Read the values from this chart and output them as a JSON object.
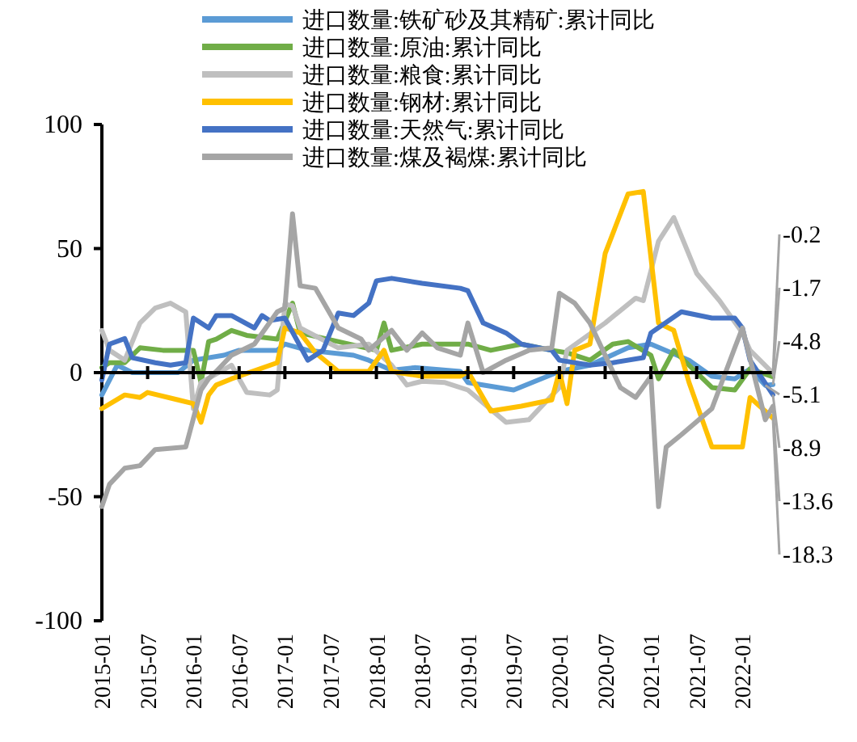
{
  "chart_data": {
    "type": "line",
    "legend": "top",
    "marker": "none",
    "line_style": "solid",
    "xlim": [
      "2015-01",
      "2022-05"
    ],
    "xticks": [
      "2015-01",
      "2015-07",
      "2016-01",
      "2016-07",
      "2017-01",
      "2017-07",
      "2018-01",
      "2018-07",
      "2019-01",
      "2019-07",
      "2020-01",
      "2020-07",
      "2021-01",
      "2021-07",
      "2022-01"
    ],
    "ylim": [
      -100,
      100
    ],
    "yticks": [
      -100,
      -50,
      0,
      50,
      100
    ],
    "series": [
      {
        "name": "进口数量:铁矿砂及其精矿:累计同比",
        "color": "#5b9bd5",
        "x": [
          "2015-01",
          "2015-03",
          "2015-05",
          "2015-11",
          "2016-01",
          "2016-05",
          "2016-07",
          "2016-12",
          "2017-01",
          "2017-04",
          "2017-10",
          "2017-12",
          "2018-03",
          "2018-06",
          "2018-12",
          "2019-01",
          "2019-07",
          "2020-01",
          "2020-05",
          "2020-10",
          "2021-01",
          "2021-06",
          "2021-09",
          "2021-12",
          "2022-02",
          "2022-04",
          "2022-05"
        ],
        "values": [
          -9,
          3,
          0,
          0,
          5,
          7,
          9,
          9,
          11.5,
          9,
          7,
          5,
          1,
          2,
          0.5,
          -4,
          -7,
          0.5,
          3,
          10,
          11.5,
          5,
          -1.5,
          -2.5,
          1.5,
          -5.1,
          -4.8
        ]
      },
      {
        "name": "进口数量:原油:累计同比",
        "color": "#70ad47",
        "x": [
          "2015-01",
          "2015-02",
          "2015-04",
          "2015-06",
          "2015-09",
          "2016-01",
          "2016-02",
          "2016-03",
          "2016-04",
          "2016-06",
          "2016-08",
          "2016-12",
          "2017-02",
          "2017-03",
          "2017-08",
          "2018-01",
          "2018-02",
          "2018-03",
          "2018-07",
          "2019-01",
          "2019-04",
          "2019-08",
          "2019-12",
          "2020-02",
          "2020-05",
          "2020-08",
          "2020-10",
          "2021-01",
          "2021-02",
          "2021-04",
          "2021-06",
          "2021-09",
          "2021-12",
          "2022-02",
          "2022-05"
        ],
        "values": [
          2,
          4,
          4,
          10,
          9,
          9,
          -4,
          12.5,
          13.5,
          17,
          15,
          13.5,
          28,
          16,
          12.5,
          9,
          20,
          9,
          11.5,
          11.5,
          9,
          11.5,
          9,
          8,
          5,
          11.5,
          12.5,
          7,
          -2.5,
          9,
          3,
          -6,
          -7,
          1.5,
          -1.7
        ]
      },
      {
        "name": "进口数量:粮食:累计同比",
        "color": "#bfbfbf",
        "x": [
          "2015-01",
          "2015-02",
          "2015-04",
          "2015-06",
          "2015-08",
          "2015-10",
          "2015-12",
          "2016-01",
          "2016-02",
          "2016-06",
          "2016-08",
          "2016-11",
          "2016-12",
          "2017-01",
          "2017-02",
          "2017-03",
          "2017-08",
          "2017-12",
          "2018-03",
          "2018-05",
          "2018-07",
          "2018-10",
          "2019-01",
          "2019-06",
          "2019-09",
          "2020-01",
          "2020-02",
          "2020-07",
          "2020-11",
          "2020-12",
          "2021-02",
          "2021-04",
          "2021-07",
          "2021-10",
          "2022-01",
          "2022-02",
          "2022-05"
        ],
        "values": [
          17,
          9,
          5,
          20,
          26,
          28,
          24.5,
          -14.5,
          -4,
          3,
          -8,
          -9,
          -7,
          27.5,
          27,
          18,
          10,
          11.5,
          3,
          -5,
          -3.5,
          -4,
          -7,
          -20,
          -19,
          -6,
          9,
          20,
          30,
          29,
          53,
          62.5,
          40,
          29,
          16,
          9,
          -0.2
        ]
      },
      {
        "name": "进口数量:钢材:累计同比",
        "color": "#ffc000",
        "x": [
          "2015-01",
          "2015-04",
          "2015-06",
          "2015-07",
          "2015-11",
          "2016-01",
          "2016-02",
          "2016-03",
          "2016-04",
          "2016-06",
          "2016-12",
          "2017-01",
          "2017-03",
          "2017-05",
          "2017-08",
          "2017-12",
          "2018-02",
          "2018-03",
          "2018-07",
          "2018-12",
          "2019-01",
          "2019-04",
          "2019-08",
          "2019-12",
          "2020-01",
          "2020-02",
          "2020-03",
          "2020-05",
          "2020-07",
          "2020-10",
          "2020-12",
          "2021-02",
          "2021-04",
          "2021-06",
          "2021-09",
          "2022-01",
          "2022-02",
          "2022-05"
        ],
        "values": [
          -14.5,
          -9,
          -10,
          -8,
          -11,
          -12.5,
          -20,
          -9,
          -5,
          -2.5,
          4,
          18,
          16,
          8,
          0.5,
          0.5,
          9,
          0.5,
          -1.5,
          -1.5,
          0.5,
          -15.5,
          -13.5,
          -11,
          0.5,
          -12.5,
          9,
          11.5,
          48,
          72,
          73,
          20,
          17,
          -4,
          -30,
          -30,
          -10,
          -18.3
        ]
      },
      {
        "name": "进口数量:天然气:累计同比",
        "color": "#4472c4",
        "x": [
          "2015-01",
          "2015-02",
          "2015-04",
          "2015-05",
          "2015-08",
          "2015-10",
          "2015-12",
          "2016-01",
          "2016-03",
          "2016-04",
          "2016-06",
          "2016-09",
          "2016-10",
          "2016-11",
          "2017-01",
          "2017-04",
          "2017-06",
          "2017-08",
          "2017-10",
          "2017-12",
          "2018-01",
          "2018-03",
          "2018-07",
          "2018-12",
          "2019-01",
          "2019-03",
          "2019-06",
          "2019-08",
          "2019-12",
          "2020-01",
          "2020-05",
          "2020-08",
          "2020-12",
          "2021-01",
          "2021-05",
          "2021-09",
          "2021-12",
          "2022-01",
          "2022-02",
          "2022-05"
        ],
        "values": [
          -3,
          11.5,
          13.7,
          6,
          4,
          3,
          4,
          22,
          18,
          23,
          23,
          18,
          23,
          21,
          22,
          5,
          9,
          24,
          23,
          28,
          37,
          38,
          36,
          34,
          33,
          20,
          16,
          11.5,
          9,
          5,
          3,
          4,
          6,
          16,
          24.5,
          22,
          22,
          18,
          5,
          -8.9
        ]
      },
      {
        "name": "进口数量:煤及褐煤:累计同比",
        "color": "#a5a5a5",
        "x": [
          "2015-01",
          "2015-02",
          "2015-04",
          "2015-06",
          "2015-08",
          "2015-12",
          "2016-02",
          "2016-03",
          "2016-04",
          "2016-06",
          "2016-09",
          "2016-12",
          "2017-01",
          "2017-02",
          "2017-03",
          "2017-05",
          "2017-08",
          "2017-11",
          "2017-12",
          "2018-03",
          "2018-05",
          "2018-07",
          "2018-09",
          "2018-12",
          "2019-01",
          "2019-03",
          "2019-06",
          "2019-09",
          "2019-12",
          "2020-01",
          "2020-03",
          "2020-05",
          "2020-09",
          "2020-11",
          "2021-01",
          "2021-02",
          "2021-03",
          "2021-05",
          "2021-09",
          "2021-12",
          "2022-01",
          "2022-04",
          "2022-05"
        ],
        "values": [
          -54,
          -45,
          -38.5,
          -37.5,
          -31,
          -30,
          -7,
          -2.5,
          0.5,
          7,
          11.5,
          24.5,
          26,
          64,
          35,
          34,
          18,
          13.5,
          9,
          17,
          9,
          16,
          10,
          7,
          20,
          0,
          5,
          9,
          10,
          32,
          28,
          20,
          -6,
          -10,
          -1.5,
          -54,
          -30,
          -25,
          -14.5,
          10,
          18,
          -19,
          -13.6
        ]
      }
    ],
    "annotations": [
      {
        "text": "-0.2",
        "x": "2022-05",
        "y": -0.2
      },
      {
        "text": "-1.7",
        "x": "2022-05",
        "y": -1.7
      },
      {
        "text": "-4.8",
        "x": "2022-05",
        "y": -4.8
      },
      {
        "text": "-5.1",
        "x": "2022-04",
        "y": -5.1
      },
      {
        "text": "-8.9",
        "x": "2022-05",
        "y": -8.9
      },
      {
        "text": "-13.6",
        "x": "2022-05",
        "y": -13.6
      },
      {
        "text": "-18.3",
        "x": "2022-05",
        "y": -18.3
      }
    ]
  }
}
